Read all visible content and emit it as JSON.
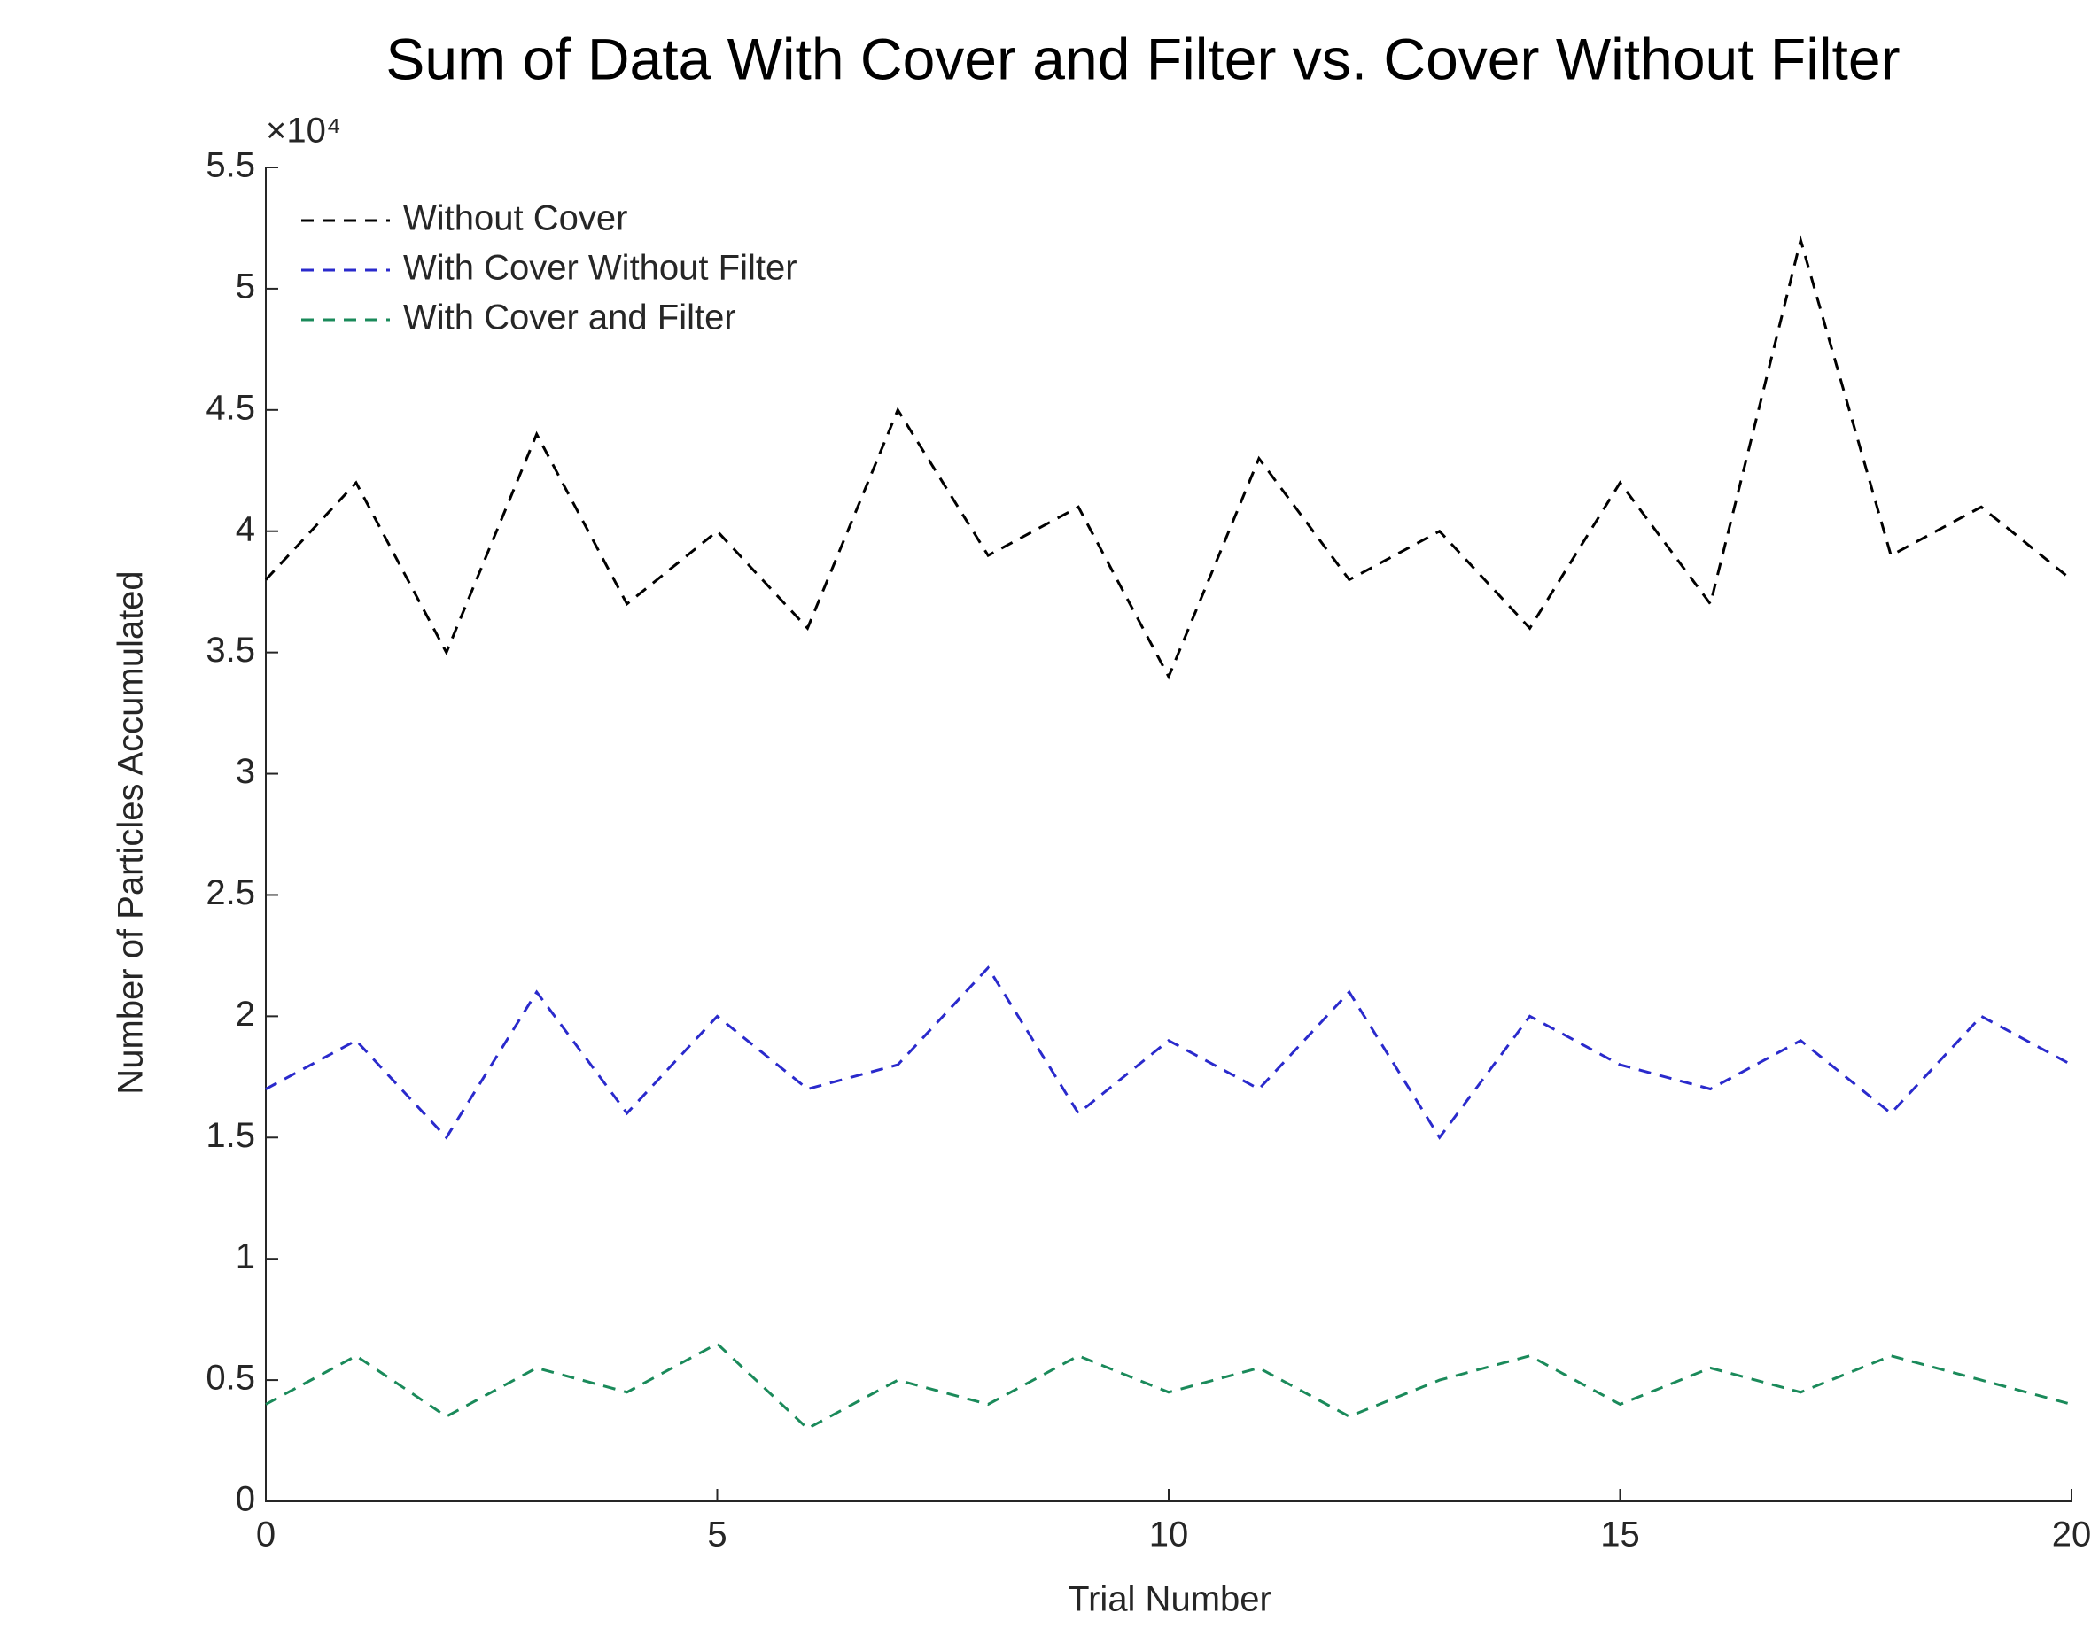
{
  "chart_data": {
    "type": "line",
    "title": "Sum of Data With Cover and Filter vs. Cover Without Filter",
    "x_label": "Trial Number",
    "y_label": "Number of Particles Accumulated",
    "y_multiplier": "×10⁴",
    "x": [
      0,
      1,
      2,
      3,
      4,
      5,
      6,
      7,
      8,
      9,
      10,
      11,
      12,
      13,
      14,
      15,
      16,
      17,
      18,
      19,
      20
    ],
    "series": [
      {
        "name": "Without Cover",
        "color": "#000000",
        "values": [
          38000,
          42000,
          35000,
          44000,
          37000,
          40000,
          36000,
          45000,
          39000,
          41000,
          34000,
          43000,
          38000,
          40000,
          36000,
          42000,
          37000,
          52000,
          39000,
          41000,
          38000
        ]
      },
      {
        "name": "With Cover Without Filter",
        "color": "#2a2acc",
        "values": [
          17000,
          19000,
          15000,
          21000,
          16000,
          20000,
          17000,
          18000,
          22000,
          16000,
          19000,
          17000,
          21000,
          15000,
          20000,
          18000,
          17000,
          19000,
          16000,
          20000,
          18000
        ]
      },
      {
        "name": "With Cover and Filter",
        "color": "#1a8a5a",
        "values": [
          4000,
          6000,
          3500,
          5500,
          4500,
          6500,
          3000,
          5000,
          4000,
          6000,
          4500,
          5500,
          3500,
          5000,
          6000,
          4000,
          5500,
          4500,
          6000,
          5000,
          4000
        ]
      }
    ],
    "xlim": [
      0,
      20
    ],
    "xticks": [
      0,
      5,
      10,
      15,
      20
    ],
    "ylim": [
      0,
      55000
    ],
    "yticks": [
      {
        "value": 0,
        "label": "0"
      },
      {
        "value": 5000,
        "label": "0.5"
      },
      {
        "value": 10000,
        "label": "1"
      },
      {
        "value": 15000,
        "label": "1.5"
      },
      {
        "value": 20000,
        "label": "2"
      },
      {
        "value": 25000,
        "label": "2.5"
      },
      {
        "value": 30000,
        "label": "3"
      },
      {
        "value": 35000,
        "label": "3.5"
      },
      {
        "value": 40000,
        "label": "4"
      },
      {
        "value": 45000,
        "label": "4.5"
      },
      {
        "value": 50000,
        "label": "5"
      },
      {
        "value": 55000,
        "label": "5.5"
      }
    ],
    "legend": "upper left"
  }
}
